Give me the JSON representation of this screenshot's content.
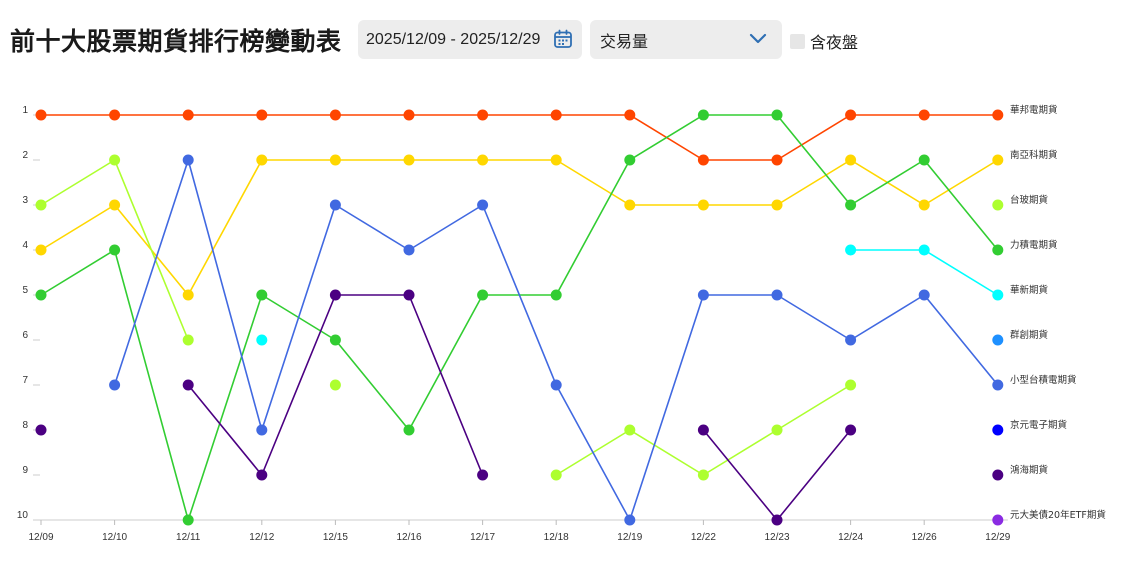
{
  "header": {
    "title": "前十大股票期貨排行榜變動表",
    "date_range": "2025/12/09 - 2025/12/29",
    "metric_select": "交易量",
    "night_session_label": "含夜盤"
  },
  "icons": {
    "calendar": "calendar-icon",
    "dropdown": "chevron-down-icon"
  },
  "chart_data": {
    "type": "line",
    "x": [
      "12/09",
      "12/10",
      "12/11",
      "12/12",
      "12/15",
      "12/16",
      "12/17",
      "12/18",
      "12/19",
      "12/22",
      "12/23",
      "12/24",
      "12/26",
      "12/29"
    ],
    "y_ticks": [
      1,
      2,
      3,
      4,
      5,
      6,
      7,
      8,
      9,
      10
    ],
    "y_inverted": true,
    "ylim": [
      1,
      10
    ],
    "legend_position": "right",
    "series": [
      {
        "name": "華邦電期貨",
        "color": "#ff4500",
        "values": [
          1,
          1,
          1,
          1,
          1,
          1,
          1,
          1,
          1,
          2,
          2,
          1,
          1,
          1
        ]
      },
      {
        "name": "南亞科期貨",
        "color": "#ffd700",
        "values": [
          4,
          3,
          5,
          2,
          2,
          2,
          2,
          2,
          3,
          3,
          3,
          2,
          3,
          2
        ]
      },
      {
        "name": "台玻期貨",
        "color": "#adff2f",
        "values": [
          3,
          2,
          6,
          null,
          7,
          null,
          null,
          9,
          8,
          9,
          8,
          7,
          null,
          3
        ]
      },
      {
        "name": "力積電期貨",
        "color": "#32cd32",
        "values": [
          5,
          4,
          10,
          5,
          6,
          8,
          5,
          5,
          2,
          1,
          1,
          3,
          2,
          4
        ]
      },
      {
        "name": "華新期貨",
        "color": "#00ffff",
        "values": [
          null,
          null,
          null,
          6,
          null,
          null,
          null,
          null,
          null,
          null,
          null,
          4,
          4,
          5
        ]
      },
      {
        "name": "群創期貨",
        "color": "#1e90ff",
        "values": [
          null,
          null,
          null,
          null,
          null,
          null,
          null,
          null,
          null,
          null,
          null,
          null,
          null,
          6
        ]
      },
      {
        "name": "小型台積電期貨",
        "color": "#4169e1",
        "values": [
          null,
          7,
          2,
          8,
          3,
          4,
          3,
          7,
          10,
          5,
          5,
          6,
          5,
          7
        ]
      },
      {
        "name": "京元電子期貨",
        "color": "#0000ff",
        "values": [
          null,
          null,
          null,
          null,
          null,
          null,
          null,
          null,
          null,
          null,
          null,
          null,
          null,
          8
        ]
      },
      {
        "name": "鴻海期貨",
        "color": "#4b0082",
        "values": [
          8,
          null,
          7,
          9,
          5,
          5,
          9,
          null,
          null,
          8,
          10,
          8,
          null,
          9
        ]
      },
      {
        "name": "元大美債20年ETF期貨",
        "color": "#8a2be2",
        "values": [
          null,
          null,
          null,
          null,
          null,
          null,
          null,
          null,
          null,
          null,
          null,
          null,
          null,
          10
        ]
      }
    ]
  }
}
